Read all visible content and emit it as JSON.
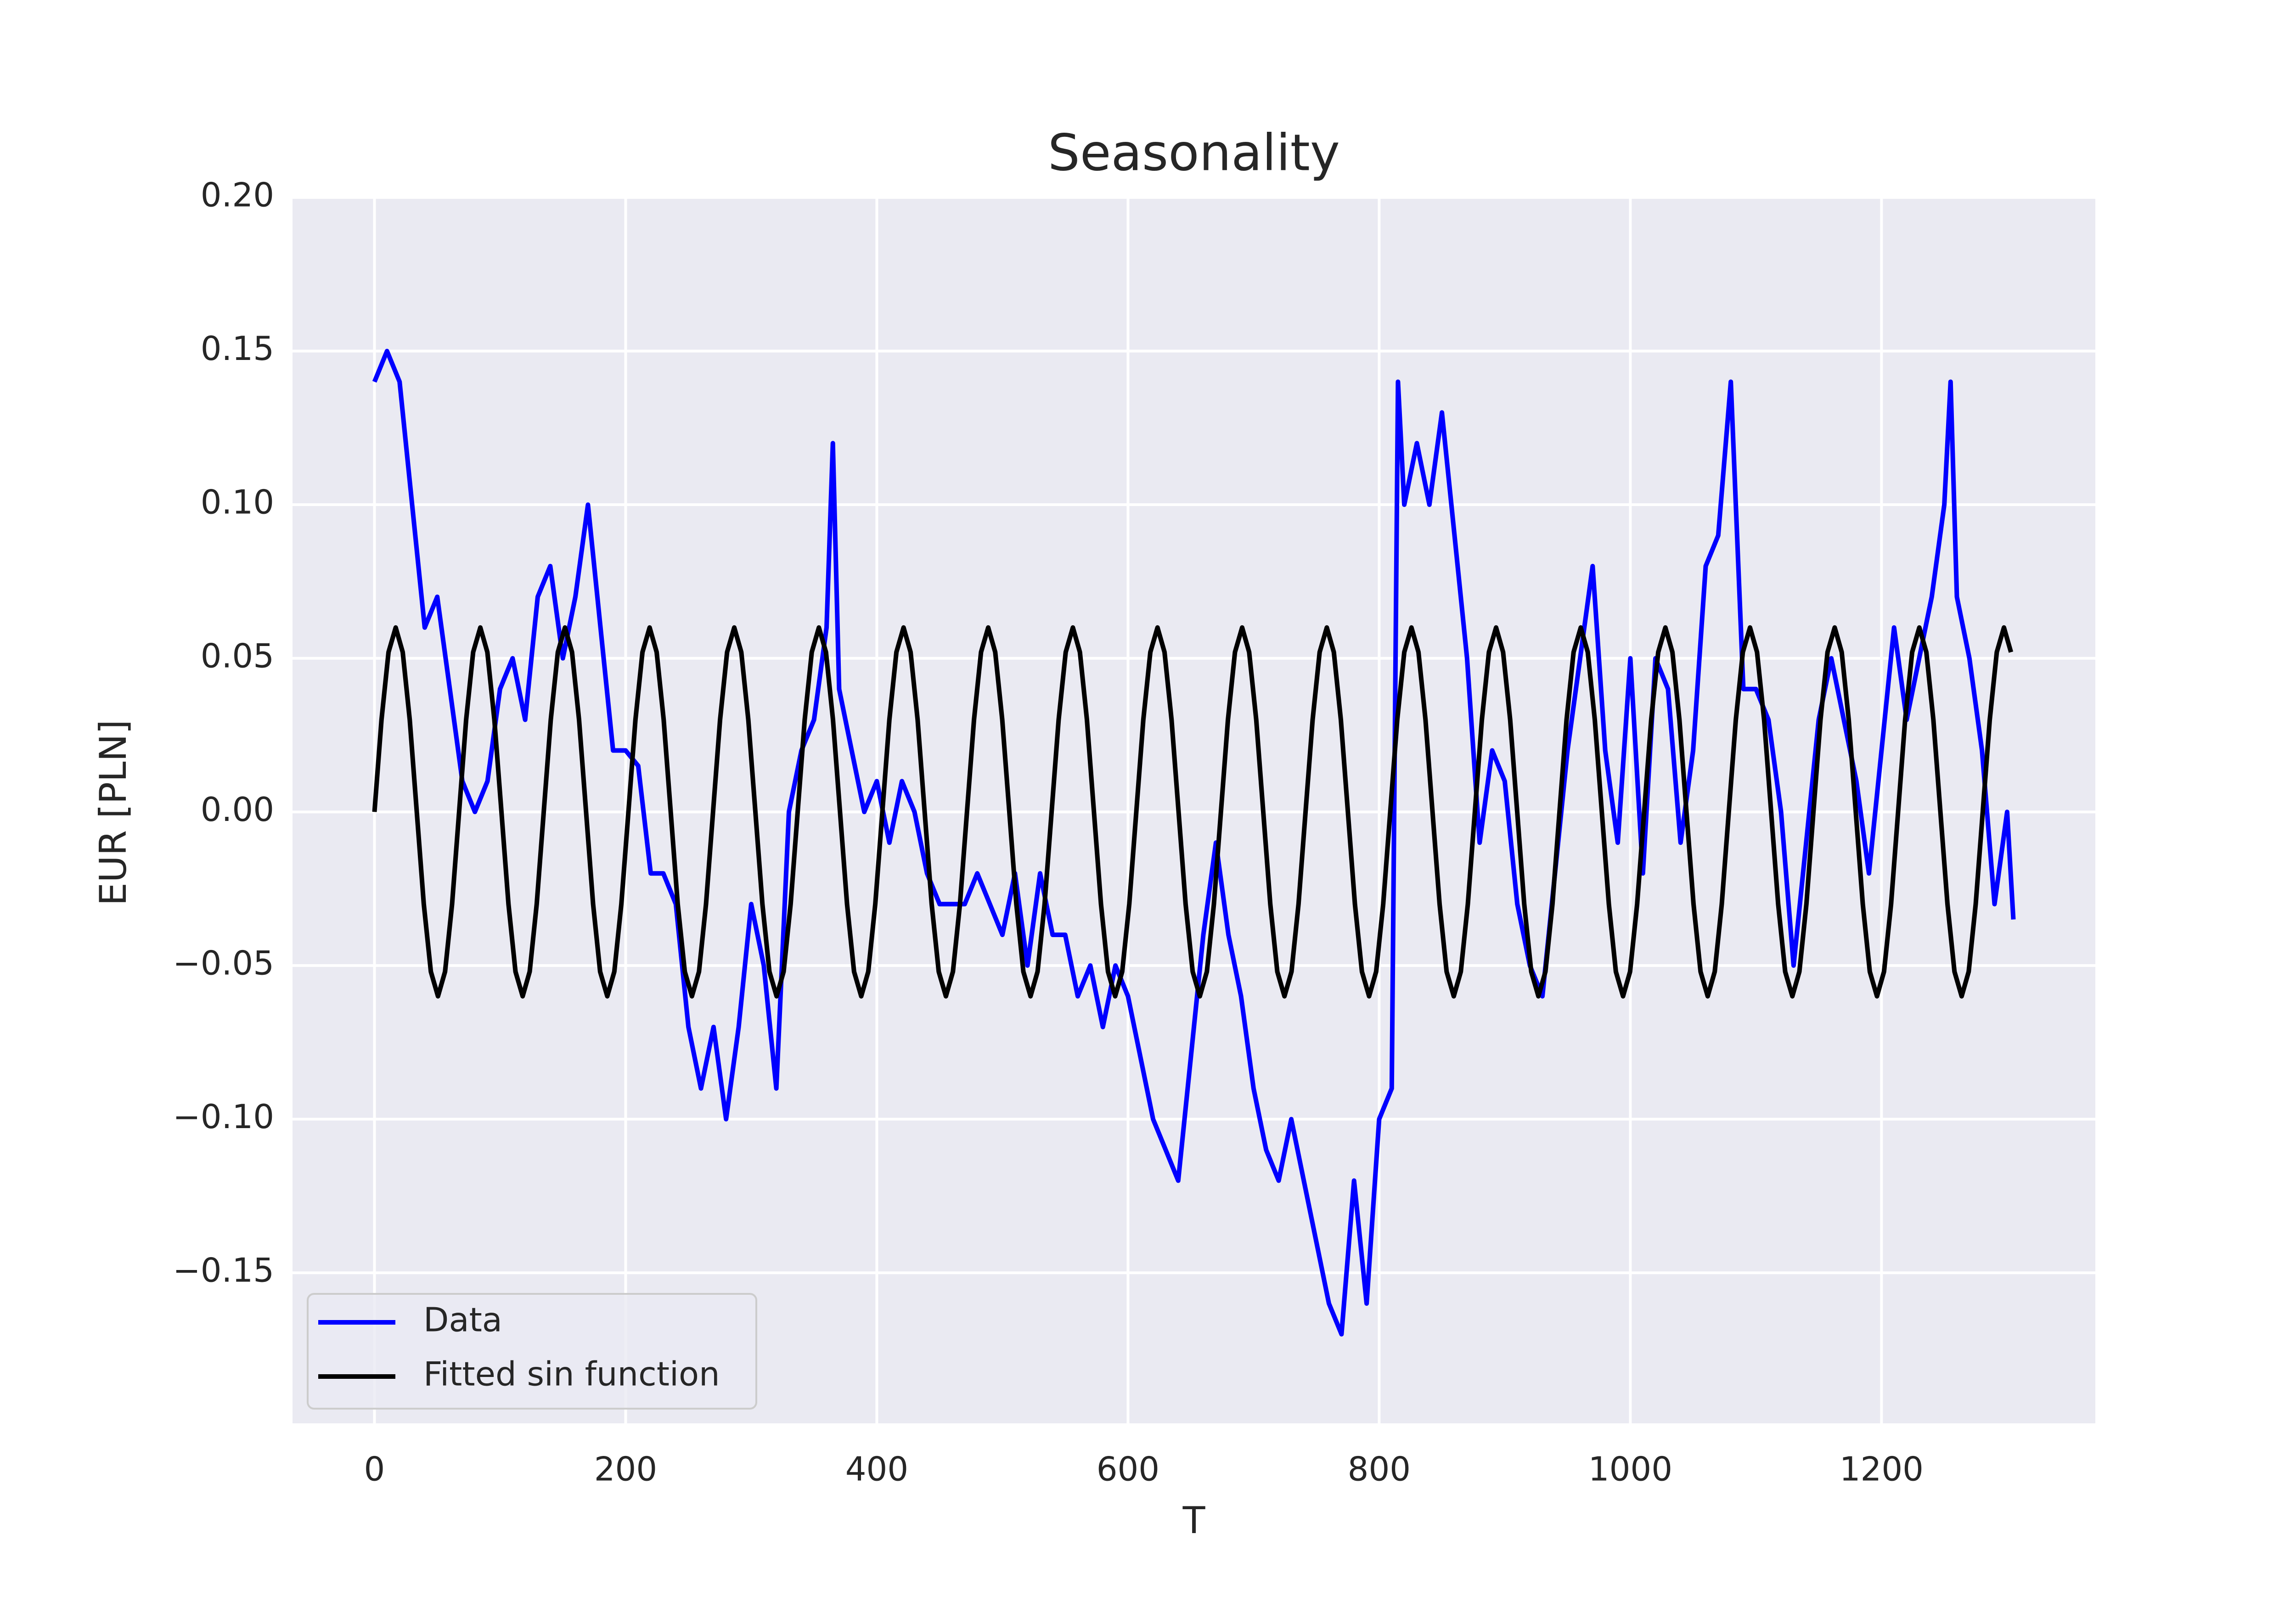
{
  "chart_data": {
    "type": "line",
    "title": "Seasonality",
    "x_label": "T",
    "y_label": "EUR [PLN]",
    "xlim": [
      -65.25,
      1370.25
    ],
    "ylim": [
      -0.199,
      0.2
    ],
    "xticks": [
      0,
      200,
      400,
      600,
      800,
      1000,
      1200
    ],
    "yticks": [
      {
        "value": -0.15,
        "label": "−0.15"
      },
      {
        "value": -0.1,
        "label": "−0.10"
      },
      {
        "value": -0.05,
        "label": "−0.05"
      },
      {
        "value": 0,
        "label": "0.00"
      },
      0.05,
      {
        "value": 0.1,
        "label": "0.10"
      },
      0.15,
      {
        "value": 0.2,
        "label": "0.20"
      }
    ],
    "grid": true,
    "legend": "lower left",
    "series": [
      {
        "name": "Data",
        "color": "#0000ff",
        "x": [
          0,
          10,
          20,
          30,
          40,
          50,
          60,
          70,
          80,
          90,
          100,
          110,
          120,
          130,
          140,
          150,
          160,
          170,
          180,
          190,
          200,
          210,
          220,
          230,
          240,
          250,
          260,
          270,
          280,
          290,
          300,
          310,
          320,
          330,
          340,
          350,
          360,
          365,
          370,
          380,
          390,
          400,
          410,
          420,
          430,
          440,
          450,
          460,
          470,
          480,
          490,
          500,
          510,
          520,
          530,
          540,
          550,
          560,
          570,
          580,
          590,
          600,
          610,
          620,
          630,
          640,
          650,
          660,
          670,
          680,
          690,
          700,
          710,
          720,
          730,
          740,
          750,
          760,
          770,
          780,
          790,
          800,
          810,
          815,
          820,
          830,
          840,
          850,
          860,
          870,
          880,
          890,
          900,
          910,
          920,
          930,
          940,
          950,
          960,
          970,
          980,
          990,
          1000,
          1010,
          1020,
          1030,
          1040,
          1050,
          1060,
          1070,
          1080,
          1090,
          1100,
          1110,
          1120,
          1130,
          1140,
          1150,
          1160,
          1170,
          1180,
          1190,
          1200,
          1210,
          1220,
          1230,
          1240,
          1250,
          1255,
          1260,
          1270,
          1280,
          1290,
          1300,
          1305
        ],
        "values": [
          0.14,
          0.15,
          0.14,
          0.1,
          0.06,
          0.07,
          0.04,
          0.01,
          0,
          0.01,
          0.04,
          0.05,
          0.03,
          0.07,
          0.08,
          0.05,
          0.07,
          0.1,
          0.06,
          0.02,
          0.02,
          0.015,
          -0.02,
          -0.02,
          -0.03,
          -0.07,
          -0.09,
          -0.07,
          -0.1,
          -0.07,
          -0.03,
          -0.05,
          -0.09,
          0,
          0.02,
          0.03,
          0.06,
          0.12,
          0.04,
          0.02,
          0,
          0.01,
          -0.01,
          0.01,
          0,
          -0.02,
          -0.03,
          -0.03,
          -0.03,
          -0.02,
          -0.03,
          -0.04,
          -0.02,
          -0.05,
          -0.02,
          -0.04,
          -0.04,
          -0.06,
          -0.05,
          -0.07,
          -0.05,
          -0.06,
          -0.08,
          -0.1,
          -0.11,
          -0.12,
          -0.08,
          -0.04,
          -0.01,
          -0.04,
          -0.06,
          -0.09,
          -0.11,
          -0.12,
          -0.1,
          -0.12,
          -0.14,
          -0.16,
          -0.17,
          -0.12,
          -0.16,
          -0.1,
          -0.09,
          0.14,
          0.1,
          0.12,
          0.1,
          0.13,
          0.09,
          0.05,
          -0.01,
          0.02,
          0.01,
          -0.03,
          -0.05,
          -0.06,
          -0.02,
          0.02,
          0.05,
          0.08,
          0.02,
          -0.01,
          0.05,
          -0.02,
          0.05,
          0.04,
          -0.01,
          0.02,
          0.08,
          0.09,
          0.14,
          0.04,
          0.04,
          0.03,
          0,
          -0.05,
          -0.01,
          0.03,
          0.05,
          0.03,
          0.01,
          -0.02,
          0.02,
          0.06,
          0.03,
          0.05,
          0.07,
          0.1,
          0.14,
          0.07,
          0.05,
          0.02,
          -0.03,
          0,
          -0.035
        ]
      },
      {
        "name": "Fitted sin function",
        "color": "#000000",
        "x": [
          0,
          5.6,
          11.2,
          16.9,
          22.5,
          28.1,
          33.7,
          39.3,
          44.9,
          50.6,
          56.2,
          61.8,
          67.4,
          73,
          78.6,
          84.3,
          89.9,
          95.5,
          101.1,
          106.7,
          112.3,
          118,
          123.6,
          129.2,
          134.8,
          140.4,
          146,
          151.7,
          157.3,
          162.9,
          168.5,
          174.1,
          179.7,
          185.4,
          191,
          196.6,
          202.2,
          207.8,
          213.4,
          219.1,
          224.7,
          230.3,
          235.9,
          241.5,
          247.1,
          252.8,
          258.4,
          264,
          269.6,
          275.2,
          280.8,
          286.5,
          292.1,
          297.7,
          303.3,
          308.9,
          314.5,
          320.2,
          325.8,
          331.4,
          337,
          342.6,
          348.2,
          353.9,
          359.5,
          365.1,
          370.7,
          376.3,
          381.9,
          387.6,
          393.2,
          398.8,
          404.4,
          410,
          415.6,
          421.3,
          426.9,
          432.5,
          438.1,
          443.7,
          449.3,
          455,
          460.6,
          466.2,
          471.8,
          477.4,
          483,
          488.7,
          494.3,
          499.9,
          505.5,
          511.1,
          516.7,
          522.4,
          528,
          533.6,
          539.2,
          544.8,
          550.4,
          556.1,
          561.7,
          567.3,
          572.9,
          578.5,
          584.1,
          589.8,
          595.4,
          601,
          606.6,
          612.2,
          617.8,
          623.5,
          629.1,
          634.7,
          640.3,
          645.9,
          651.5,
          657.2,
          662.8,
          668.4,
          674,
          679.6,
          685.2,
          690.9,
          696.5,
          702.1,
          707.7,
          713.3,
          718.9,
          724.6,
          730.2,
          735.8,
          741.4,
          747,
          752.6,
          758.3,
          763.9,
          769.5,
          775.1,
          780.7,
          786.3,
          792,
          797.6,
          803.2,
          808.8,
          814.4,
          820,
          825.7,
          831.3,
          836.9,
          842.5,
          848.1,
          853.7,
          859.4,
          865,
          870.6,
          876.2,
          881.8,
          887.4,
          893.1,
          898.7,
          904.3,
          909.9,
          915.5,
          921.1,
          926.8,
          932.4,
          938,
          943.6,
          949.2,
          954.8,
          960.5,
          966.1,
          971.7,
          977.3,
          982.9,
          988.5,
          994.2,
          999.8,
          1005.4,
          1011,
          1016.6,
          1022.2,
          1027.9,
          1033.5,
          1039.1,
          1044.7,
          1050.3,
          1055.9,
          1061.6,
          1067.2,
          1072.8,
          1078.4,
          1084,
          1089.6,
          1095.3,
          1100.9,
          1106.5,
          1112.1,
          1117.7,
          1123.3,
          1129,
          1134.6,
          1140.2,
          1145.8,
          1151.4,
          1157,
          1162.7,
          1168.3,
          1173.9,
          1179.5,
          1185.1,
          1190.7,
          1196.4,
          1202,
          1207.6,
          1213.2,
          1218.8,
          1224.4,
          1230.1,
          1235.7,
          1241.3,
          1246.9,
          1252.5,
          1258.1,
          1263.8,
          1269.4,
          1275,
          1280.6,
          1286.2,
          1291.8,
          1297.5,
          1303.1
        ],
        "values": [
          0,
          0.03,
          0.052,
          0.06,
          0.052,
          0.03,
          0,
          -0.03,
          -0.052,
          -0.06,
          -0.052,
          -0.03,
          0,
          0.03,
          0.052,
          0.06,
          0.052,
          0.03,
          0,
          -0.03,
          -0.052,
          -0.06,
          -0.052,
          -0.03,
          0,
          0.03,
          0.052,
          0.06,
          0.052,
          0.03,
          0,
          -0.03,
          -0.052,
          -0.06,
          -0.052,
          -0.03,
          0,
          0.03,
          0.052,
          0.06,
          0.052,
          0.03,
          0,
          -0.03,
          -0.052,
          -0.06,
          -0.052,
          -0.03,
          0,
          0.03,
          0.052,
          0.06,
          0.052,
          0.03,
          0,
          -0.03,
          -0.052,
          -0.06,
          -0.052,
          -0.03,
          0,
          0.03,
          0.052,
          0.06,
          0.052,
          0.03,
          0,
          -0.03,
          -0.052,
          -0.06,
          -0.052,
          -0.03,
          0,
          0.03,
          0.052,
          0.06,
          0.052,
          0.03,
          0,
          -0.03,
          -0.052,
          -0.06,
          -0.052,
          -0.03,
          0,
          0.03,
          0.052,
          0.06,
          0.052,
          0.03,
          0,
          -0.03,
          -0.052,
          -0.06,
          -0.052,
          -0.03,
          0,
          0.03,
          0.052,
          0.06,
          0.052,
          0.03,
          0,
          -0.03,
          -0.052,
          -0.06,
          -0.052,
          -0.03,
          0,
          0.03,
          0.052,
          0.06,
          0.052,
          0.03,
          0,
          -0.03,
          -0.052,
          -0.06,
          -0.052,
          -0.03,
          0,
          0.03,
          0.052,
          0.06,
          0.052,
          0.03,
          0,
          -0.03,
          -0.052,
          -0.06,
          -0.052,
          -0.03,
          0,
          0.03,
          0.052,
          0.06,
          0.052,
          0.03,
          0,
          -0.03,
          -0.052,
          -0.06,
          -0.052,
          -0.03,
          0,
          0.03,
          0.052,
          0.06,
          0.052,
          0.03,
          0,
          -0.03,
          -0.052,
          -0.06,
          -0.052,
          -0.03,
          0,
          0.03,
          0.052,
          0.06,
          0.052,
          0.03,
          0,
          -0.03,
          -0.052,
          -0.06,
          -0.052,
          -0.03,
          0,
          0.03,
          0.052,
          0.06,
          0.052,
          0.03,
          0,
          -0.03,
          -0.052,
          -0.06,
          -0.052,
          -0.03,
          0,
          0.03,
          0.052,
          0.06,
          0.052,
          0.03,
          0,
          -0.03,
          -0.052,
          -0.06,
          -0.052,
          -0.03,
          0,
          0.03,
          0.052,
          0.06,
          0.052,
          0.03,
          0,
          -0.03,
          -0.052,
          -0.06,
          -0.052,
          -0.03,
          0,
          0.03,
          0.052,
          0.06,
          0.052,
          0.03,
          0,
          -0.03,
          -0.052,
          -0.06,
          -0.052,
          -0.03,
          0,
          0.03,
          0.052,
          0.06,
          0.052,
          0.03,
          0,
          -0.03,
          -0.052,
          -0.06,
          -0.052,
          -0.03,
          0,
          0.03,
          0.052,
          0.06,
          0.052
        ]
      }
    ]
  }
}
